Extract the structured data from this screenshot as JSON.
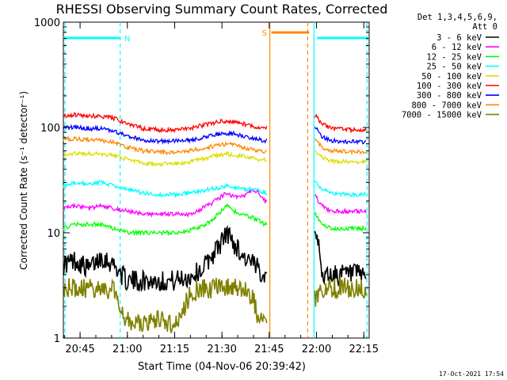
{
  "chart_data": {
    "type": "line",
    "title": "RHESSI Observing Summary Count Rates, Corrected",
    "xlabel": "Start Time (04-Nov-06 20:39:42)",
    "ylabel": "Corrected Count Rate (s⁻¹ detector⁻¹)",
    "yscale": "log",
    "ylim": [
      1,
      1000
    ],
    "xlim_minutes": [
      0,
      97
    ],
    "x_ticks": [
      "20:45",
      "21:00",
      "21:15",
      "21:30",
      "21:45",
      "22:00",
      "22:15"
    ],
    "x_tick_minutes": [
      5.3,
      20.3,
      35.3,
      50.3,
      65.3,
      80.3,
      95.3
    ],
    "y_ticks": [
      "1",
      "10",
      "100",
      "1000"
    ],
    "y_tick_values": [
      1,
      10,
      100,
      1000
    ],
    "legend_header": [
      "Det 1,3,4,5,6,9,",
      "Att 0"
    ],
    "legend_position": "right",
    "date_stamp": "17-Oct-2021 17:54",
    "flags": [
      {
        "label": "N",
        "color": "#00ffff",
        "segments": [
          [
            0,
            17.8
          ],
          [
            80.5,
            97
          ]
        ]
      },
      {
        "label": "S",
        "color": "#ff8800",
        "segments": [
          [
            66,
            78
          ]
        ]
      }
    ],
    "vlines": [
      {
        "minute": 0.5,
        "color": "#00ffff",
        "style": "dashed"
      },
      {
        "minute": 18.0,
        "color": "#00ffff",
        "style": "dashed"
      },
      {
        "minute": 65.5,
        "color": "#ff8800",
        "style": "solid"
      },
      {
        "minute": 77.5,
        "color": "#ff8800",
        "style": "dashed"
      },
      {
        "minute": 79.5,
        "color": "#00ffff",
        "style": "solid"
      },
      {
        "minute": 96.3,
        "color": "#00ffff",
        "style": "dashed"
      }
    ],
    "gaps_minutes": [
      [
        64.7,
        79.6
      ]
    ],
    "series": [
      {
        "name": "3 - 6 keV",
        "color": "#000000",
        "x": [
          0,
          4,
          8,
          12,
          16,
          20,
          25,
          30,
          35,
          40,
          44,
          47,
          50,
          52,
          54,
          57,
          60,
          62,
          64,
          80,
          82,
          85,
          90,
          96
        ],
        "y": [
          5,
          5.5,
          4.5,
          6,
          5,
          3.5,
          3.5,
          3.5,
          3.5,
          3.8,
          4.5,
          6,
          8,
          10,
          8,
          6,
          5,
          4.5,
          4,
          12,
          4,
          4,
          4,
          4
        ]
      },
      {
        "name": "6 - 12 keV",
        "color": "#ff00ff",
        "x": [
          0,
          4,
          8,
          12,
          16,
          20,
          25,
          30,
          35,
          40,
          44,
          47,
          50,
          52,
          54,
          57,
          60,
          62,
          64,
          80,
          82,
          85,
          90,
          96
        ],
        "y": [
          17,
          18,
          17,
          18,
          17,
          16,
          15,
          15,
          15,
          15,
          17,
          19,
          22,
          24,
          22,
          22,
          26,
          24,
          20,
          22,
          18,
          16,
          16,
          16
        ]
      },
      {
        "name": "12 - 25 keV",
        "color": "#00ff00",
        "x": [
          0,
          4,
          8,
          12,
          16,
          20,
          25,
          30,
          35,
          40,
          44,
          47,
          50,
          52,
          54,
          57,
          60,
          62,
          64,
          80,
          82,
          85,
          90,
          96
        ],
        "y": [
          11,
          12,
          12,
          12,
          11,
          10,
          10,
          10,
          10,
          10.5,
          11.5,
          13,
          16,
          18,
          16,
          15,
          14,
          13,
          12,
          15,
          12,
          11,
          11,
          11
        ]
      },
      {
        "name": "25 - 50 keV",
        "color": "#00ffff",
        "x": [
          0,
          4,
          8,
          12,
          16,
          20,
          25,
          30,
          35,
          40,
          44,
          47,
          50,
          52,
          54,
          57,
          60,
          62,
          64,
          80,
          82,
          85,
          90,
          96
        ],
        "y": [
          28,
          30,
          29,
          30,
          28,
          26,
          24,
          23,
          23,
          24,
          25,
          26,
          27,
          28,
          27,
          26,
          26,
          25,
          24,
          30,
          26,
          24,
          23,
          23
        ]
      },
      {
        "name": "50 - 100 keV",
        "color": "#dddd00",
        "x": [
          0,
          4,
          8,
          12,
          16,
          20,
          25,
          30,
          35,
          40,
          44,
          47,
          50,
          52,
          54,
          57,
          60,
          62,
          64,
          80,
          82,
          85,
          90,
          96
        ],
        "y": [
          55,
          57,
          56,
          56,
          54,
          50,
          46,
          45,
          45,
          47,
          50,
          53,
          55,
          56,
          55,
          53,
          51,
          50,
          49,
          60,
          52,
          48,
          47,
          47
        ]
      },
      {
        "name": "100 - 300 keV",
        "color": "#ff0000",
        "x": [
          0,
          4,
          8,
          12,
          16,
          20,
          25,
          30,
          35,
          40,
          44,
          47,
          50,
          52,
          54,
          57,
          60,
          62,
          64,
          80,
          82,
          85,
          90,
          96
        ],
        "y": [
          130,
          132,
          128,
          128,
          122,
          110,
          98,
          95,
          95,
          98,
          104,
          110,
          114,
          115,
          113,
          108,
          103,
          100,
          98,
          130,
          108,
          98,
          95,
          95
        ]
      },
      {
        "name": "300 - 800 keV",
        "color": "#0000ff",
        "x": [
          0,
          4,
          8,
          12,
          16,
          20,
          25,
          30,
          35,
          40,
          44,
          47,
          50,
          52,
          54,
          57,
          60,
          62,
          64,
          80,
          82,
          85,
          90,
          96
        ],
        "y": [
          100,
          100,
          98,
          97,
          93,
          83,
          76,
          74,
          74,
          76,
          80,
          84,
          87,
          88,
          87,
          83,
          79,
          77,
          75,
          100,
          82,
          75,
          73,
          73
        ]
      },
      {
        "name": "800 - 7000 keV",
        "color": "#ff8800",
        "x": [
          0,
          4,
          8,
          12,
          16,
          20,
          25,
          30,
          35,
          40,
          44,
          47,
          50,
          52,
          54,
          57,
          60,
          62,
          64,
          80,
          82,
          85,
          90,
          96
        ],
        "y": [
          78,
          78,
          76,
          75,
          72,
          65,
          60,
          58,
          58,
          60,
          63,
          66,
          68,
          69,
          68,
          65,
          62,
          60,
          59,
          80,
          65,
          60,
          59,
          59
        ]
      },
      {
        "name": "7000 - 15000 keV",
        "color": "#808000",
        "x": [
          0,
          4,
          8,
          12,
          16,
          20,
          25,
          30,
          35,
          40,
          44,
          47,
          50,
          52,
          54,
          57,
          60,
          62,
          64,
          80,
          82,
          85,
          90,
          96
        ],
        "y": [
          3,
          2.9,
          3,
          2.9,
          3,
          1.5,
          1.3,
          1.5,
          1.3,
          2.5,
          3,
          3,
          3,
          3,
          3,
          3,
          2.5,
          1.5,
          1.3,
          2.5,
          3,
          3,
          3,
          3
        ]
      }
    ]
  }
}
